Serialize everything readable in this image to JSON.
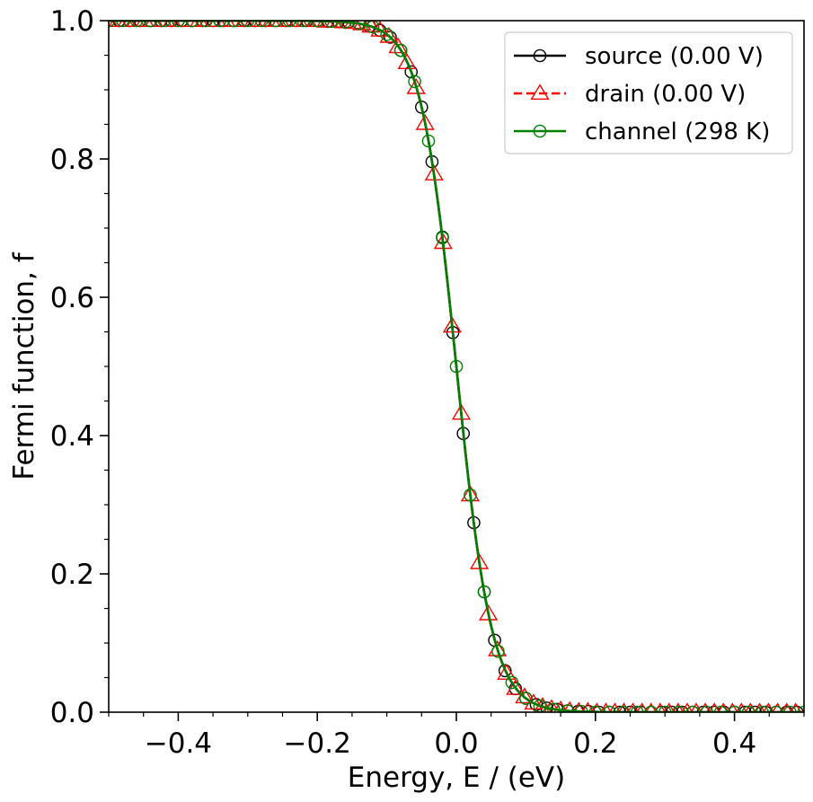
{
  "chart_data": {
    "type": "line",
    "title": "",
    "xlabel": "Energy, E / (eV)",
    "ylabel": "Fermi function, f",
    "xlim": [
      -0.5,
      0.5
    ],
    "ylim": [
      0.0,
      1.0
    ],
    "x_ticks": [
      -0.4,
      -0.2,
      0.0,
      0.2,
      0.4
    ],
    "x_tick_labels": [
      "−0.4",
      "−0.2",
      "0.0",
      "0.2",
      "0.4"
    ],
    "y_ticks": [
      0.0,
      0.2,
      0.4,
      0.6,
      0.8,
      1.0
    ],
    "y_tick_labels": [
      "0.0",
      "0.2",
      "0.4",
      "0.6",
      "0.8",
      "1.0"
    ],
    "grid": false,
    "legend_position": "top-right",
    "kT_eV": 0.02568,
    "series": [
      {
        "name": "source (0.00 V)",
        "color": "#000000",
        "line_style": "solid",
        "marker": "circle",
        "mu_eV": 0.0,
        "x": [
          -0.5,
          -0.485,
          -0.47,
          -0.455,
          -0.44,
          -0.425,
          -0.41,
          -0.395,
          -0.38,
          -0.365,
          -0.35,
          -0.335,
          -0.32,
          -0.305,
          -0.29,
          -0.275,
          -0.26,
          -0.245,
          -0.23,
          -0.215,
          -0.2,
          -0.185,
          -0.17,
          -0.155,
          -0.14,
          -0.125,
          -0.11,
          -0.095,
          -0.08,
          -0.065,
          -0.05,
          -0.035,
          -0.02,
          -0.005,
          0.01,
          0.025,
          0.04,
          0.055,
          0.07,
          0.085,
          0.1,
          0.115,
          0.13,
          0.145,
          0.16,
          0.175,
          0.19,
          0.205,
          0.22,
          0.235,
          0.25,
          0.265,
          0.28,
          0.295,
          0.31,
          0.325,
          0.34,
          0.355,
          0.37,
          0.385,
          0.4,
          0.415,
          0.43,
          0.445,
          0.46,
          0.475,
          0.49
        ],
        "y": [
          1.0,
          1.0,
          1.0,
          1.0,
          1.0,
          1.0,
          1.0,
          1.0,
          1.0,
          1.0,
          1.0,
          1.0,
          1.0,
          1.0,
          1.0,
          1.0,
          1.0,
          1.0,
          1.0,
          1.0,
          1.0,
          0.999,
          0.999,
          0.998,
          0.996,
          0.992,
          0.986,
          0.976,
          0.957,
          0.926,
          0.875,
          0.796,
          0.687,
          0.549,
          0.403,
          0.274,
          0.174,
          0.104,
          0.06,
          0.034,
          0.02,
          0.011,
          0.006,
          0.004,
          0.002,
          0.001,
          0.001,
          0.0,
          0.0,
          0.0,
          0.0,
          0.0,
          0.0,
          0.0,
          0.0,
          0.0,
          0.0,
          0.0,
          0.0,
          0.0,
          0.0,
          0.0,
          0.0,
          0.0,
          0.0,
          0.0,
          0.0
        ]
      },
      {
        "name": "drain (0.00 V)",
        "color": "#ff0000",
        "line_style": "dashed",
        "marker": "triangle",
        "mu_eV": 0.0,
        "x": [
          -0.5,
          -0.487,
          -0.474,
          -0.461,
          -0.448,
          -0.435,
          -0.422,
          -0.409,
          -0.396,
          -0.383,
          -0.37,
          -0.357,
          -0.344,
          -0.331,
          -0.318,
          -0.305,
          -0.292,
          -0.279,
          -0.266,
          -0.253,
          -0.24,
          -0.227,
          -0.214,
          -0.201,
          -0.188,
          -0.175,
          -0.162,
          -0.149,
          -0.136,
          -0.123,
          -0.11,
          -0.097,
          -0.084,
          -0.071,
          -0.058,
          -0.045,
          -0.032,
          -0.019,
          -0.006,
          0.007,
          0.02,
          0.033,
          0.046,
          0.059,
          0.072,
          0.085,
          0.098,
          0.111,
          0.124,
          0.137,
          0.15,
          0.163,
          0.176,
          0.189,
          0.202,
          0.215,
          0.228,
          0.241,
          0.254,
          0.267,
          0.28,
          0.293,
          0.306,
          0.319,
          0.332,
          0.345,
          0.358,
          0.371,
          0.384,
          0.397,
          0.41,
          0.423,
          0.436,
          0.449,
          0.462,
          0.475,
          0.488
        ],
        "y": [
          1.0,
          1.0,
          1.0,
          1.0,
          1.0,
          1.0,
          1.0,
          1.0,
          1.0,
          1.0,
          1.0,
          1.0,
          1.0,
          1.0,
          1.0,
          1.0,
          1.0,
          1.0,
          1.0,
          1.0,
          1.0,
          1.0,
          1.0,
          1.0,
          0.999,
          0.999,
          0.998,
          0.997,
          0.995,
          0.992,
          0.986,
          0.977,
          0.962,
          0.939,
          0.903,
          0.851,
          0.778,
          0.679,
          0.558,
          0.432,
          0.314,
          0.216,
          0.142,
          0.09,
          0.056,
          0.034,
          0.022,
          0.013,
          0.008,
          0.005,
          0.003,
          0.002,
          0.001,
          0.001,
          0.0,
          0.0,
          0.0,
          0.0,
          0.0,
          0.0,
          0.0,
          0.0,
          0.0,
          0.0,
          0.0,
          0.0,
          0.0,
          0.0,
          0.0,
          0.0,
          0.0,
          0.0,
          0.0,
          0.0,
          0.0,
          0.0,
          0.0
        ]
      },
      {
        "name": "channel (298 K)",
        "color": "#008000",
        "line_style": "solid",
        "marker": "circle",
        "mu_eV": 0.0,
        "x": [
          -0.5,
          -0.48,
          -0.46,
          -0.44,
          -0.42,
          -0.4,
          -0.38,
          -0.36,
          -0.34,
          -0.32,
          -0.3,
          -0.28,
          -0.26,
          -0.24,
          -0.22,
          -0.2,
          -0.18,
          -0.16,
          -0.14,
          -0.12,
          -0.1,
          -0.08,
          -0.06,
          -0.04,
          -0.02,
          0.0,
          0.02,
          0.04,
          0.06,
          0.08,
          0.1,
          0.12,
          0.14,
          0.16,
          0.18,
          0.2,
          0.22,
          0.24,
          0.26,
          0.28,
          0.3,
          0.32,
          0.34,
          0.36,
          0.38,
          0.4,
          0.42,
          0.44,
          0.46,
          0.48,
          0.5
        ],
        "y": [
          1.0,
          1.0,
          1.0,
          1.0,
          1.0,
          1.0,
          1.0,
          1.0,
          1.0,
          1.0,
          1.0,
          1.0,
          1.0,
          1.0,
          1.0,
          1.0,
          0.999,
          0.998,
          0.996,
          0.991,
          0.98,
          0.957,
          0.912,
          0.826,
          0.686,
          0.5,
          0.314,
          0.174,
          0.088,
          0.043,
          0.02,
          0.009,
          0.004,
          0.002,
          0.001,
          0.0,
          0.0,
          0.0,
          0.0,
          0.0,
          0.0,
          0.0,
          0.0,
          0.0,
          0.0,
          0.0,
          0.0,
          0.0,
          0.0,
          0.0,
          0.0
        ]
      }
    ]
  }
}
